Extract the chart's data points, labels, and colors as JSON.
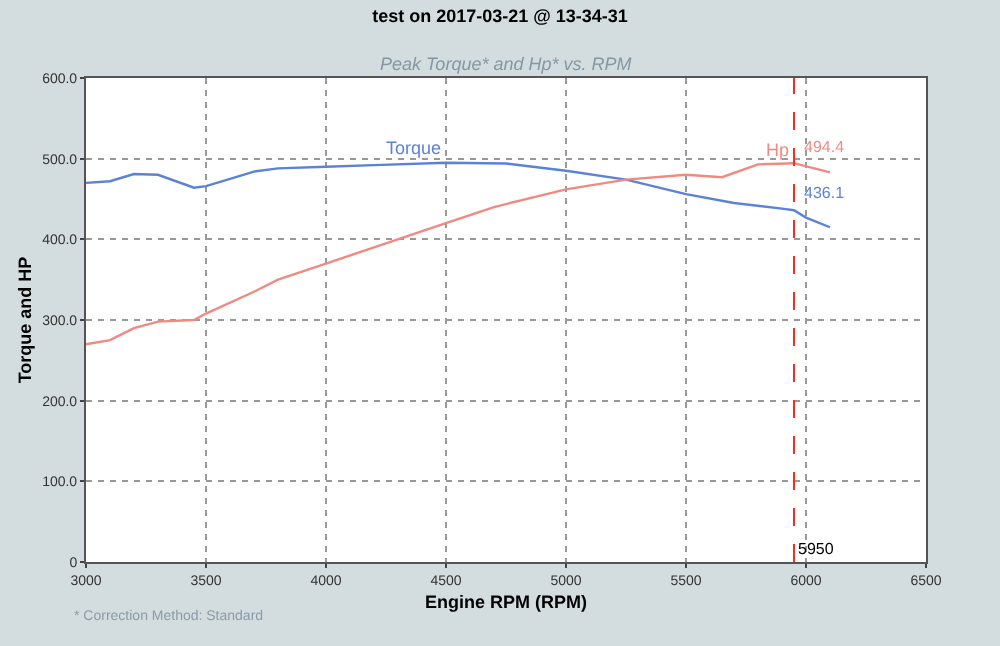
{
  "chart_data": {
    "type": "line",
    "title": "test on 2017-03-21 @ 13-34-31",
    "subtitle": "Peak Torque* and Hp* vs. RPM",
    "xlabel": "Engine RPM (RPM)",
    "ylabel": "Torque and HP",
    "xlim": [
      3000,
      6500
    ],
    "xticks": [
      3000,
      3500,
      4000,
      4500,
      5000,
      5500,
      6000,
      6500
    ],
    "ylim": [
      0,
      600
    ],
    "yticks": [
      {
        "value": 0,
        "label": "0"
      },
      {
        "value": 100,
        "label": "100.0"
      },
      {
        "value": 200,
        "label": "200.0"
      },
      {
        "value": 300,
        "label": "300.0"
      },
      {
        "value": 400,
        "label": "400.0"
      },
      {
        "value": 500,
        "label": "500.0"
      },
      {
        "value": 600,
        "label": "600.0"
      }
    ],
    "grid": true,
    "legend": false,
    "marker": "none",
    "line_style": "solid",
    "series": [
      {
        "name": "Torque",
        "color": "#5b82d6",
        "x": [
          3000,
          3100,
          3200,
          3300,
          3450,
          3500,
          3700,
          3800,
          4000,
          4200,
          4500,
          4750,
          5000,
          5250,
          5500,
          5700,
          5900,
          5950,
          6000,
          6100
        ],
        "values": [
          470,
          472,
          481,
          480,
          464,
          466,
          484,
          488,
          490,
          492,
          495,
          494,
          485,
          474,
          456,
          445,
          438,
          436.1,
          427,
          415
        ]
      },
      {
        "name": "Hp",
        "color": "#f08a80",
        "x": [
          3000,
          3100,
          3200,
          3300,
          3450,
          3500,
          3700,
          3800,
          4000,
          4200,
          4500,
          4700,
          5000,
          5250,
          5500,
          5650,
          5800,
          5950,
          6100
        ],
        "values": [
          270,
          275,
          290,
          298,
          300,
          308,
          335,
          350,
          370,
          390,
          420,
          440,
          462,
          474,
          480,
          477,
          493,
          494.4,
          483
        ]
      }
    ],
    "ref_lines": [
      {
        "axis": "x",
        "value": 5950,
        "label": "5950",
        "color": "#ff2a1a",
        "line_style": "dashed"
      }
    ],
    "annotations": [
      {
        "text": "494.4",
        "x": 5950,
        "y": 494.4
      },
      {
        "text": "436.1",
        "x": 5950,
        "y": 436.1
      },
      "* Correction Method: Standard"
    ]
  }
}
